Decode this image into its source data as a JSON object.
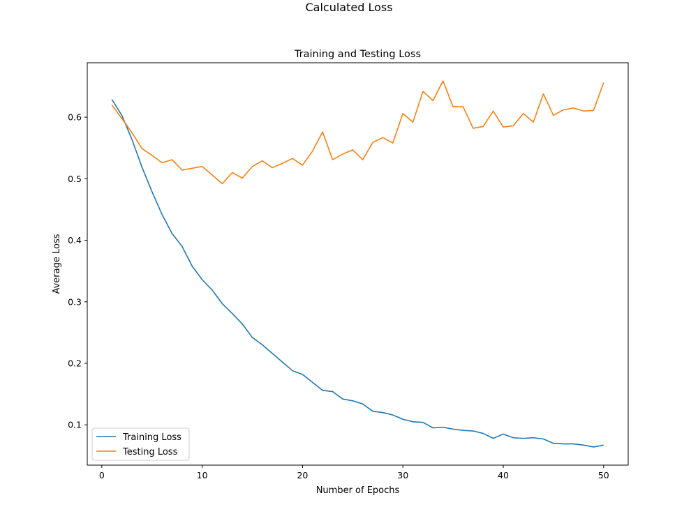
{
  "chart_data": {
    "type": "line",
    "suptitle": "Calculated Loss",
    "title": "Training and Testing Loss",
    "xlabel": "Number of Epochs",
    "ylabel": "Average Loss",
    "xlim": [
      -1.45,
      52.45
    ],
    "ylim": [
      0.0345,
      0.6885
    ],
    "xticks": [
      0,
      10,
      20,
      30,
      40,
      50
    ],
    "yticks": [
      0.1,
      0.2,
      0.3,
      0.4,
      0.5,
      0.6
    ],
    "grid": false,
    "legend_position": "lower-left",
    "x": [
      1,
      2,
      3,
      4,
      5,
      6,
      7,
      8,
      9,
      10,
      11,
      12,
      13,
      14,
      15,
      16,
      17,
      18,
      19,
      20,
      21,
      22,
      23,
      24,
      25,
      26,
      27,
      28,
      29,
      30,
      31,
      32,
      33,
      34,
      35,
      36,
      37,
      38,
      39,
      40,
      41,
      42,
      43,
      44,
      45,
      46,
      47,
      48,
      49,
      50
    ],
    "series": [
      {
        "name": "Training Loss",
        "color": "#1f77b4",
        "values": [
          0.629,
          0.603,
          0.564,
          0.519,
          0.479,
          0.442,
          0.411,
          0.39,
          0.358,
          0.336,
          0.319,
          0.297,
          0.281,
          0.264,
          0.242,
          0.23,
          0.216,
          0.202,
          0.188,
          0.182,
          0.169,
          0.156,
          0.154,
          0.142,
          0.139,
          0.134,
          0.122,
          0.12,
          0.116,
          0.109,
          0.105,
          0.104,
          0.095,
          0.096,
          0.093,
          0.091,
          0.09,
          0.086,
          0.078,
          0.085,
          0.079,
          0.078,
          0.079,
          0.077,
          0.07,
          0.069,
          0.069,
          0.067,
          0.064,
          0.067
        ]
      },
      {
        "name": "Testing Loss",
        "color": "#ff7f0e",
        "values": [
          0.62,
          0.598,
          0.575,
          0.549,
          0.538,
          0.526,
          0.531,
          0.514,
          0.517,
          0.52,
          0.506,
          0.492,
          0.51,
          0.501,
          0.52,
          0.529,
          0.518,
          0.525,
          0.533,
          0.522,
          0.545,
          0.576,
          0.531,
          0.54,
          0.547,
          0.531,
          0.559,
          0.567,
          0.558,
          0.606,
          0.592,
          0.642,
          0.627,
          0.659,
          0.617,
          0.617,
          0.582,
          0.585,
          0.61,
          0.584,
          0.586,
          0.606,
          0.592,
          0.638,
          0.603,
          0.612,
          0.615,
          0.61,
          0.611,
          0.656
        ]
      }
    ]
  }
}
